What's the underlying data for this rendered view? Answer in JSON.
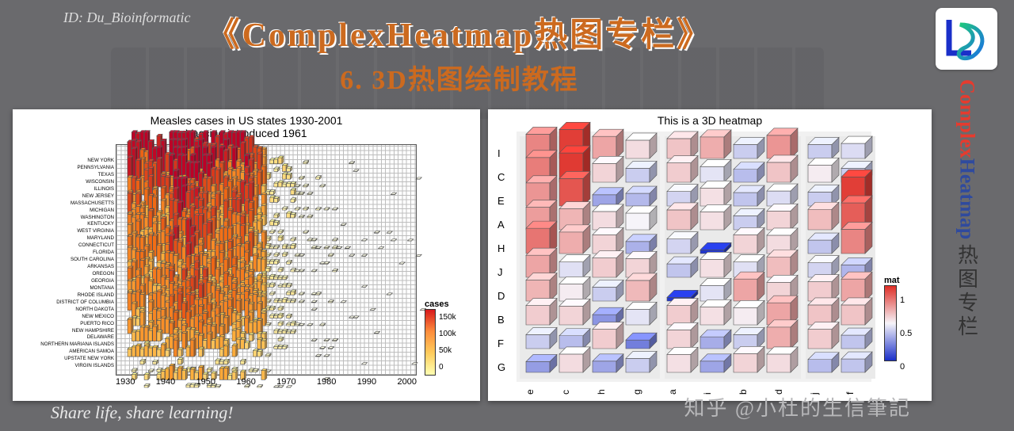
{
  "header": {
    "id_label": "ID: Du_Bioinformatic",
    "main_title": "《ComplexHeatmap热图专栏》",
    "sub_title": "6. 3D热图绘制教程"
  },
  "footer": {
    "tagline": "Share life, share learning!"
  },
  "watermark": {
    "text": "知乎 @小杜的生信筆記"
  },
  "right_brand": {
    "logo_initials": "LD",
    "vertical_en_a": "Complex",
    "vertical_en_b": "Heatmap",
    "vertical_cn": "热图专栏"
  },
  "left_chart": {
    "type": "heatmap-3d",
    "title_line1": "Measles cases in US states 1930-2001",
    "title_line2": "Vaccine introduced 1961",
    "title_fontsize": 14,
    "background_color": "#ffffff",
    "grid_color": "#bdbdbd",
    "x_range": [
      1930,
      2000
    ],
    "x_tick_step": 10,
    "x_ticks": [
      "1930",
      "1940",
      "1950",
      "1960",
      "1970",
      "1980",
      "1990",
      "2000"
    ],
    "y_labels": [
      "NEW YORK",
      "PENNSYLVANIA",
      "TEXAS",
      "WISCONSIN",
      "ILLINOIS",
      "NEW JERSEY",
      "MASSACHUSETTS",
      "MICHIGAN",
      "WASHINGTON",
      "KENTUCKY",
      "WEST VIRGINIA",
      "MARYLAND",
      "CONNECTICUT",
      "FLORIDA",
      "SOUTH CAROLINA",
      "ARKANSAS",
      "OREGON",
      "GEORGIA",
      "MONTANA",
      "RHODE ISLAND",
      "DISTRICT OF COLUMBIA",
      "NORTH DAKOTA",
      "NEW MEXICO",
      "PUERTO RICO",
      "NEW HAMPSHIRE",
      "DELAWARE",
      "NORTHERN MARIANA ISLANDS",
      "AMERICAN SAMOA",
      "UPSTATE NEW YORK",
      "VIRGIN ISLANDS"
    ],
    "legend": {
      "title": "cases",
      "ticks": [
        "150k",
        "100k",
        "50k",
        "0"
      ],
      "colors": [
        "#d7191c",
        "#fd8d3c",
        "#fecc5c",
        "#ffffb2"
      ],
      "range": [
        0,
        150000
      ]
    },
    "value_color_stops": [
      {
        "v": 0,
        "c": "#ffffcc"
      },
      {
        "v": 20000,
        "c": "#fee187"
      },
      {
        "v": 50000,
        "c": "#fdae3b"
      },
      {
        "v": 100000,
        "c": "#f16913"
      },
      {
        "v": 150000,
        "c": "#bd0026"
      }
    ],
    "era_density": [
      {
        "years": [
          1930,
          1940
        ],
        "mean_cases": 65000,
        "coverage": 0.78
      },
      {
        "years": [
          1940,
          1950
        ],
        "mean_cases": 88000,
        "coverage": 0.92
      },
      {
        "years": [
          1950,
          1960
        ],
        "mean_cases": 72000,
        "coverage": 0.9
      },
      {
        "years": [
          1960,
          1963
        ],
        "mean_cases": 55000,
        "coverage": 0.82
      },
      {
        "years": [
          1963,
          1970
        ],
        "mean_cases": 12000,
        "coverage": 0.45
      },
      {
        "years": [
          1970,
          1980
        ],
        "mean_cases": 4000,
        "coverage": 0.18
      },
      {
        "years": [
          1980,
          1990
        ],
        "mean_cases": 1500,
        "coverage": 0.06
      },
      {
        "years": [
          1990,
          2001
        ],
        "mean_cases": 800,
        "coverage": 0.03
      }
    ],
    "top_state_scale": [
      1.9,
      1.7,
      1.6,
      1.5,
      1.4,
      1.4,
      1.3,
      1.3,
      1.2,
      1.2,
      1.15,
      1.1,
      1.1,
      1.05,
      1.05,
      1.0,
      1.0,
      1.0,
      0.95,
      0.95,
      0.9,
      0.85,
      0.8,
      0.75,
      0.7,
      0.65,
      0.2,
      0.15,
      0.55,
      0.1
    ],
    "cell_w": 5.3,
    "cell_h": 5.65,
    "max_bar_h": 40
  },
  "right_chart": {
    "type": "heatmap-3d",
    "title": "This is a 3D heatmap",
    "title_fontsize": 14,
    "background_color": "#f1f1f1",
    "row_labels": [
      "I",
      "C",
      "E",
      "A",
      "H",
      "J",
      "D",
      "B",
      "F",
      "G"
    ],
    "col_labels": [
      "e",
      "c",
      "h",
      "g",
      "a",
      "i",
      "b",
      "d",
      "j",
      "f"
    ],
    "col_split_after": [
      4,
      8
    ],
    "legend": {
      "title": "mat",
      "ticks": [
        "1",
        "0.5",
        "0"
      ],
      "colors_top": "#df2e26",
      "colors_mid": "#f6f4f9",
      "colors_bot": "#1a2fc9",
      "range": [
        0,
        1
      ]
    },
    "matrix": [
      [
        0.78,
        0.96,
        0.7,
        0.56,
        0.62,
        0.68,
        0.4,
        0.74,
        0.4,
        0.44
      ],
      [
        0.8,
        0.97,
        0.58,
        0.4,
        0.6,
        0.46,
        0.36,
        0.62,
        0.52,
        0.4
      ],
      [
        0.74,
        0.9,
        0.3,
        0.35,
        0.42,
        0.55,
        0.38,
        0.44,
        0.4,
        0.96
      ],
      [
        0.72,
        0.66,
        0.56,
        0.5,
        0.62,
        0.55,
        0.4,
        0.58,
        0.64,
        0.88
      ],
      [
        0.82,
        0.68,
        0.58,
        0.33,
        0.42,
        0.02,
        0.58,
        0.56,
        0.38,
        0.78
      ],
      [
        0.7,
        0.45,
        0.6,
        0.58,
        0.38,
        0.55,
        0.45,
        0.64,
        0.42,
        0.34
      ],
      [
        0.66,
        0.52,
        0.4,
        0.65,
        0.02,
        0.46,
        0.7,
        0.58,
        0.6,
        0.7
      ],
      [
        0.6,
        0.58,
        0.26,
        0.46,
        0.6,
        0.55,
        0.52,
        0.7,
        0.62,
        0.62
      ],
      [
        0.4,
        0.36,
        0.6,
        0.2,
        0.58,
        0.32,
        0.4,
        0.68,
        0.6,
        0.38
      ],
      [
        0.28,
        0.56,
        0.3,
        0.4,
        0.55,
        0.3,
        0.58,
        0.56,
        0.36,
        0.38
      ]
    ],
    "cube_w": 30,
    "cube_depth": 9,
    "max_cube_h": 34,
    "col_gap": 42,
    "row_gap": 30
  }
}
